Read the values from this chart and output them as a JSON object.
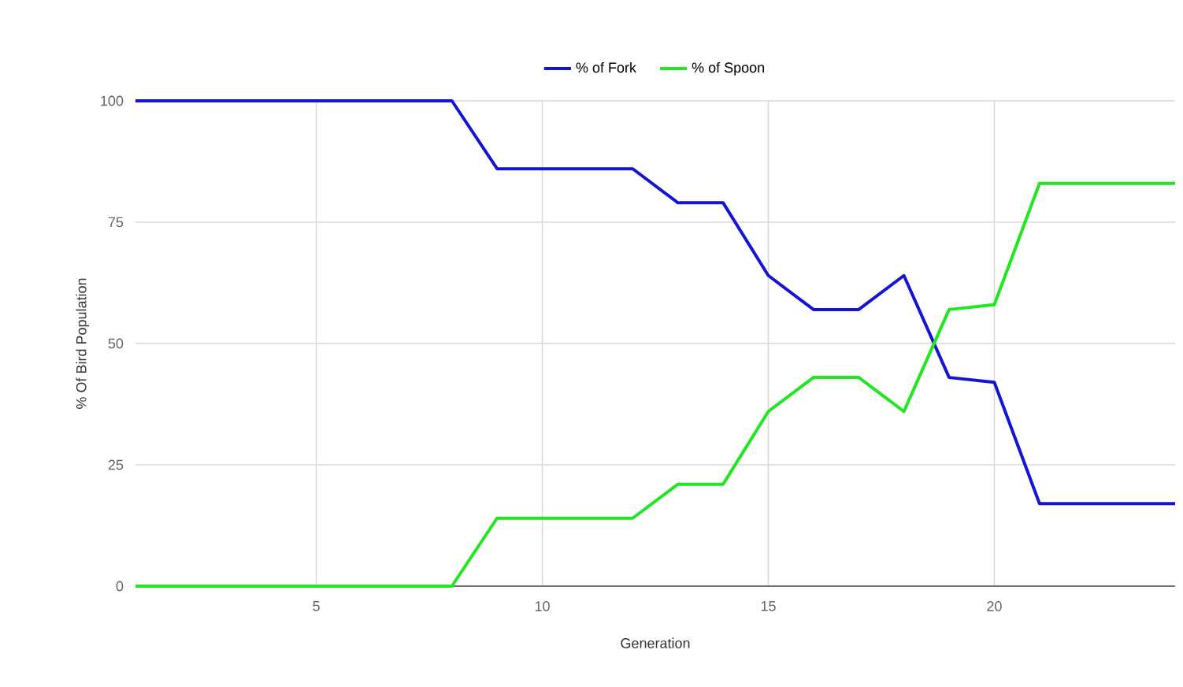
{
  "chart_data": {
    "type": "line",
    "xlabel": "Generation",
    "ylabel": "% Of Bird Population",
    "x": [
      1,
      2,
      3,
      4,
      5,
      6,
      7,
      8,
      9,
      10,
      11,
      12,
      13,
      14,
      15,
      16,
      17,
      18,
      19,
      20,
      21,
      22,
      23,
      24
    ],
    "series": [
      {
        "name": "% of Fork",
        "color": "#1414d4",
        "values": [
          100,
          100,
          100,
          100,
          100,
          100,
          100,
          100,
          86,
          86,
          86,
          86,
          79,
          79,
          64,
          57,
          57,
          64,
          43,
          42,
          17,
          17,
          17,
          17
        ]
      },
      {
        "name": "% of Spoon",
        "color": "#22e622",
        "values": [
          0,
          0,
          0,
          0,
          0,
          0,
          0,
          0,
          14,
          14,
          14,
          14,
          21,
          21,
          36,
          43,
          43,
          36,
          57,
          58,
          83,
          83,
          83,
          83
        ]
      }
    ],
    "xlim": [
      1,
      24
    ],
    "xticks": [
      5,
      10,
      15,
      20
    ],
    "ylim": [
      0,
      100
    ],
    "yticks": [
      0,
      25,
      50,
      75,
      100
    ],
    "grid": true,
    "legend": "top",
    "marker": "none",
    "line_style": "solid"
  }
}
